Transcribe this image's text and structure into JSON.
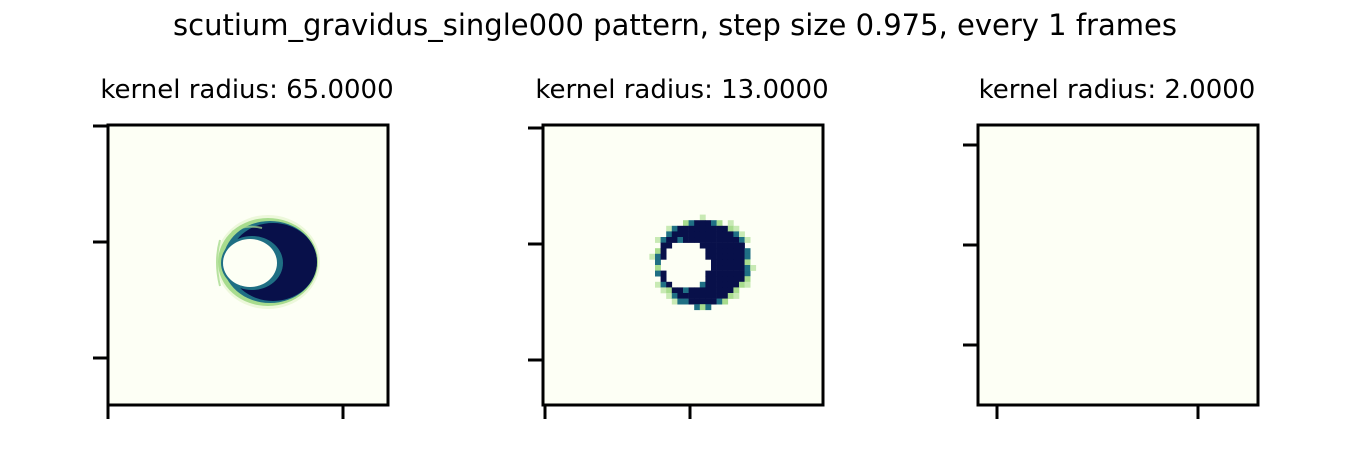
{
  "figure": {
    "suptitle": "scutium_gravidus_single000 pattern, step size 0.975, every 1 frames"
  },
  "colors": {
    "background": "#fdfff5",
    "ring_dark": "#08104a",
    "ring_mid": "#1f6f84",
    "ring_edge": "#a8dc8e",
    "axes": "#000000"
  },
  "chart_data": [
    {
      "type": "heatmap",
      "title": "kernel radius: 65.0000",
      "colormap": "YlGnBu-like (light cream to dark navy)",
      "pattern": "crescent ring, dark on right side, light hole on left, light green rim",
      "yticks": 3,
      "xticks": 2,
      "tick_labels": "none"
    },
    {
      "type": "heatmap",
      "title": "kernel radius: 13.0000",
      "colormap": "YlGnBu-like (light cream to dark navy)",
      "pattern": "pixelated crescent ring, dark on right side, light hole on left, light green speckled rim",
      "yticks": 3,
      "xticks": 2,
      "tick_labels": "none"
    },
    {
      "type": "heatmap",
      "title": "kernel radius: 2.0000",
      "colormap": "YlGnBu-like (light cream to dark navy)",
      "pattern": "uniform background, no structure",
      "yticks": 3,
      "xticks": 2,
      "tick_labels": "none"
    }
  ]
}
